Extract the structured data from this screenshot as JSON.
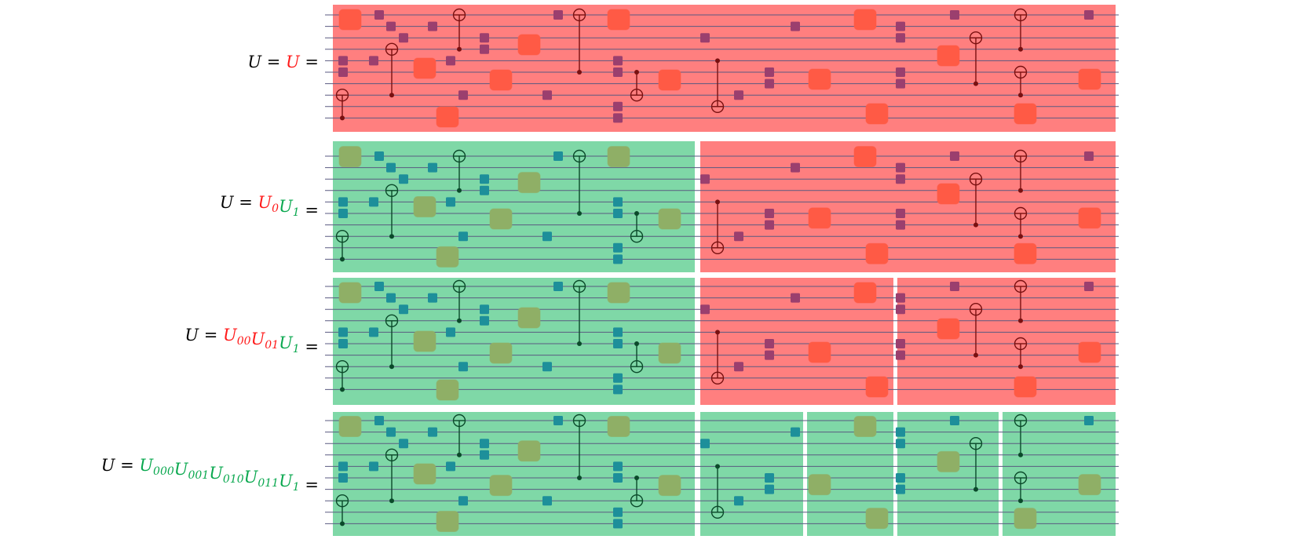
{
  "colors": {
    "red_block": "#ff7f7f",
    "green_block": "#7fd8a7",
    "wire": "#5a5a80",
    "red_square": "#9b3f6e",
    "green_square": "#1d8f9a",
    "red_gate_box": "#ff5a45",
    "green_gate_box": "#8faf66",
    "red_cnot": "#7a1010",
    "green_cnot": "#0a4a2a",
    "label_black": "#000000",
    "label_red": "#ff1a1a",
    "label_green": "#0aa84f"
  },
  "equations": [
    {
      "name": "row-1-equation",
      "parts": [
        {
          "base": "U",
          "sub": "",
          "color": "label_black"
        },
        {
          "base": " = ",
          "sub": "",
          "color": "label_black"
        },
        {
          "base": "U",
          "sub": "",
          "color": "label_red"
        },
        {
          "base": " =",
          "sub": "",
          "color": "label_black"
        }
      ]
    },
    {
      "name": "row-2-equation",
      "parts": [
        {
          "base": "U",
          "sub": "",
          "color": "label_black"
        },
        {
          "base": " = ",
          "sub": "",
          "color": "label_black"
        },
        {
          "base": "U",
          "sub": "0",
          "color": "label_red"
        },
        {
          "base": "U",
          "sub": "1",
          "color": "label_green"
        },
        {
          "base": " =",
          "sub": "",
          "color": "label_black"
        }
      ]
    },
    {
      "name": "row-3-equation",
      "parts": [
        {
          "base": "U",
          "sub": "",
          "color": "label_black"
        },
        {
          "base": " = ",
          "sub": "",
          "color": "label_black"
        },
        {
          "base": "U",
          "sub": "00",
          "color": "label_red"
        },
        {
          "base": "U",
          "sub": "01",
          "color": "label_red"
        },
        {
          "base": "U",
          "sub": "1",
          "color": "label_green"
        },
        {
          "base": " =",
          "sub": "",
          "color": "label_black"
        }
      ]
    },
    {
      "name": "row-4-equation",
      "parts": [
        {
          "base": "U",
          "sub": "",
          "color": "label_black"
        },
        {
          "base": " = ",
          "sub": "",
          "color": "label_black"
        },
        {
          "base": "U",
          "sub": "000",
          "color": "label_green"
        },
        {
          "base": "U",
          "sub": "001",
          "color": "label_green"
        },
        {
          "base": "U",
          "sub": "010",
          "color": "label_green"
        },
        {
          "base": "U",
          "sub": "011",
          "color": "label_green"
        },
        {
          "base": "U",
          "sub": "1",
          "color": "label_green"
        },
        {
          "base": " =",
          "sub": "",
          "color": "label_black"
        }
      ]
    }
  ],
  "rows": [
    {
      "segments": [
        "red"
      ]
    },
    {
      "segments": [
        "green",
        "red"
      ]
    },
    {
      "segments": [
        "green",
        "red",
        "red"
      ]
    },
    {
      "segments": [
        "green",
        "green",
        "green",
        "green",
        "green"
      ]
    }
  ]
}
